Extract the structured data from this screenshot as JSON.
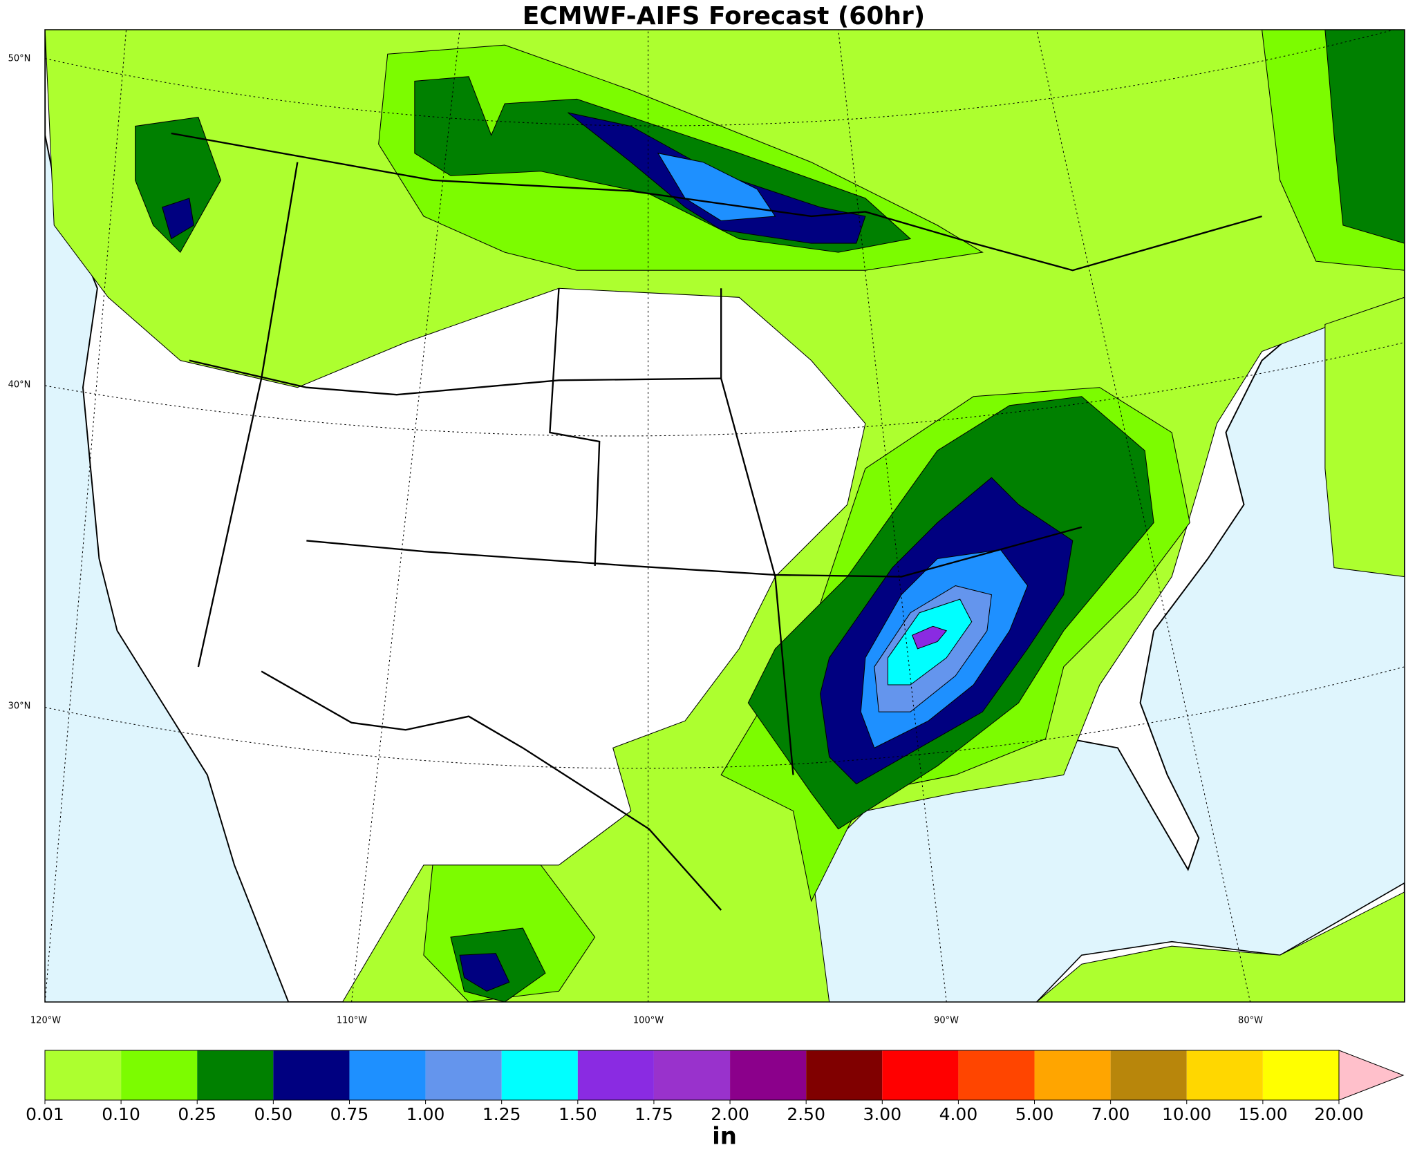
{
  "map": {
    "title": "ECMWF-AIFS Forecast (60hr)",
    "lat_labels": [
      "50°N",
      "40°N",
      "30°N"
    ],
    "lon_labels": [
      "120°W",
      "110°W",
      "100°W",
      "90°W",
      "80°W"
    ],
    "colorbar": {
      "levels": [
        {
          "value": 0.01,
          "label": "0.01"
        },
        {
          "value": 0.1,
          "label": "0.10"
        },
        {
          "value": 0.25,
          "label": "0.25"
        },
        {
          "value": 0.5,
          "label": "0.50"
        },
        {
          "value": 0.75,
          "label": "0.75"
        },
        {
          "value": 1,
          "label": "1.00"
        },
        {
          "value": 1.25,
          "label": "1.25"
        },
        {
          "value": 1.5,
          "label": "1.50"
        },
        {
          "value": 1.75,
          "label": "1.75"
        },
        {
          "value": 2,
          "label": "2.00"
        },
        {
          "value": 2.5,
          "label": "2.50"
        },
        {
          "value": 3,
          "label": "3.00"
        },
        {
          "value": 4,
          "label": "4.00"
        },
        {
          "value": 5,
          "label": "5.00"
        },
        {
          "value": 7,
          "label": "7.00"
        },
        {
          "value": 10,
          "label": "10.00"
        },
        {
          "value": 15,
          "label": "15.00"
        },
        {
          "value": 20,
          "label": "20.00"
        }
      ],
      "colors": [
        "#adff2f",
        "#7cfc00",
        "#008000",
        "#000080",
        "#1e90ff",
        "#6495ed",
        "#00ffff",
        "#8a2be2",
        "#9932cc",
        "#8b008b",
        "#800000",
        "#ff0000",
        "#ff4500",
        "#ffa500",
        "#b8860b",
        "#ffd700",
        "#ffff00"
      ],
      "extend_color": "#ffc0cb",
      "unit": "in"
    }
  }
}
